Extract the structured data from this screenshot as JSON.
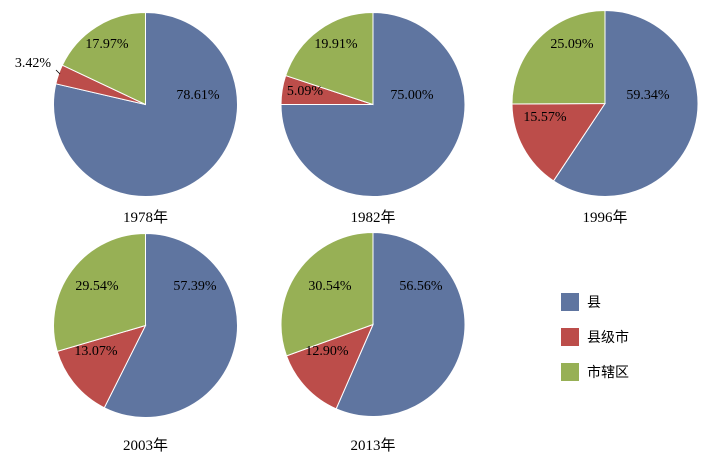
{
  "chart_data": [
    {
      "type": "pie",
      "title": "1978年",
      "labels": [
        "县",
        "县级市",
        "市辖区"
      ],
      "values": [
        78.61,
        3.42,
        17.97
      ],
      "value_labels": [
        "78.61%",
        "3.42%",
        "17.97%"
      ]
    },
    {
      "type": "pie",
      "title": "1982年",
      "labels": [
        "县",
        "县级市",
        "市辖区"
      ],
      "values": [
        75.0,
        5.09,
        19.91
      ],
      "value_labels": [
        "75.00%",
        "5.09%",
        "19.91%"
      ]
    },
    {
      "type": "pie",
      "title": "1996年",
      "labels": [
        "县",
        "县级市",
        "市辖区"
      ],
      "values": [
        59.34,
        15.57,
        25.09
      ],
      "value_labels": [
        "59.34%",
        "15.57%",
        "25.09%"
      ]
    },
    {
      "type": "pie",
      "title": "2003年",
      "labels": [
        "县",
        "县级市",
        "市辖区"
      ],
      "values": [
        57.39,
        13.07,
        29.54
      ],
      "value_labels": [
        "57.39%",
        "13.07%",
        "29.54%"
      ]
    },
    {
      "type": "pie",
      "title": "2013年",
      "labels": [
        "县",
        "县级市",
        "市辖区"
      ],
      "values": [
        56.56,
        12.9,
        30.54
      ],
      "value_labels": [
        "56.56%",
        "12.90%",
        "30.54%"
      ]
    }
  ],
  "legend": {
    "placement": "right",
    "items": [
      {
        "label": "县",
        "color": "#5f75a0"
      },
      {
        "label": "县级市",
        "color": "#bc4d4a"
      },
      {
        "label": "市辖区",
        "color": "#97b055"
      }
    ]
  },
  "colors": [
    "#5f75a0",
    "#bc4d4a",
    "#97b055"
  ]
}
